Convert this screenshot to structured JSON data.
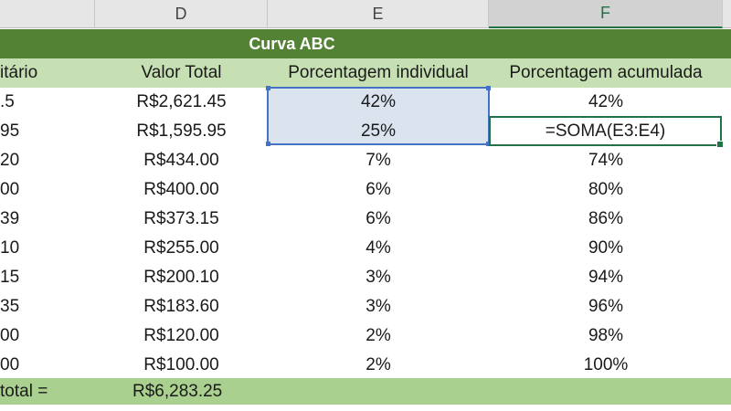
{
  "columns": {
    "d": "D",
    "e": "E",
    "f": "F"
  },
  "title": "Curva ABC",
  "headers": {
    "unit": "itário",
    "total": "Valor Total",
    "individual": "Porcentagem individual",
    "cumulative": "Porcentagem acumulada"
  },
  "rows": [
    {
      "c": ".5",
      "d": "R$2,621.45",
      "e": "42%",
      "f": "42%"
    },
    {
      "c": "95",
      "d": "R$1,595.95",
      "e": "25%",
      "f": "=SOMA(E3:E4)"
    },
    {
      "c": "20",
      "d": "R$434.00",
      "e": "7%",
      "f": "74%"
    },
    {
      "c": "00",
      "d": "R$400.00",
      "e": "6%",
      "f": "80%"
    },
    {
      "c": "39",
      "d": "R$373.15",
      "e": "6%",
      "f": "86%"
    },
    {
      "c": "10",
      "d": "R$255.00",
      "e": "4%",
      "f": "90%"
    },
    {
      "c": "15",
      "d": "R$200.10",
      "e": "3%",
      "f": "94%"
    },
    {
      "c": "35",
      "d": "R$183.60",
      "e": "3%",
      "f": "96%"
    },
    {
      "c": "00",
      "d": "R$120.00",
      "e": "2%",
      "f": "98%"
    },
    {
      "c": "00",
      "d": "R$100.00",
      "e": "2%",
      "f": "100%"
    }
  ],
  "footer": {
    "label": "total =",
    "value": "R$6,283.25"
  },
  "colors": {
    "banner": "#548235",
    "header_fill": "#c6e0b4",
    "footer_fill": "#a9d08e",
    "selection": "#4472c4",
    "active_cell": "#217346"
  }
}
